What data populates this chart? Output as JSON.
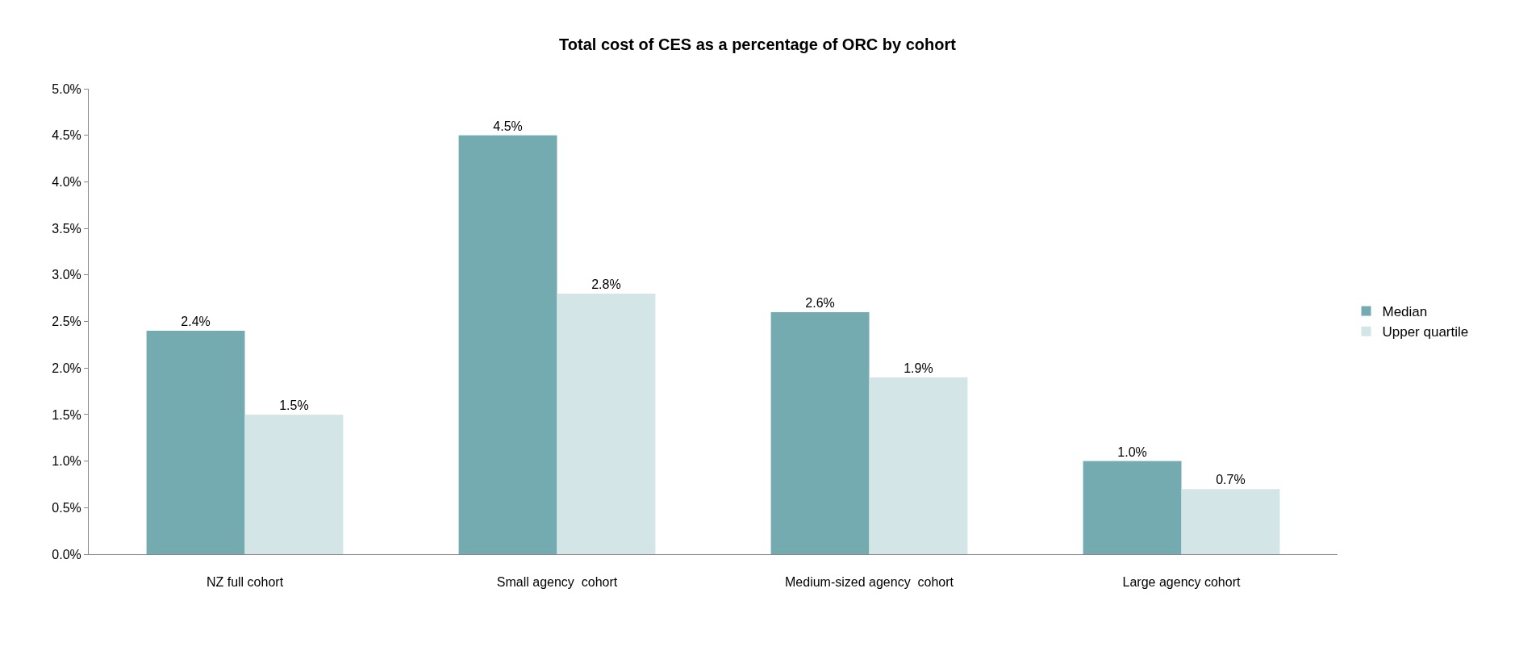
{
  "chart_data": {
    "type": "bar",
    "title": "Total cost of CES as a percentage of ORC by cohort",
    "categories": [
      "NZ full cohort",
      "Small agency  cohort",
      "Medium-sized agency  cohort",
      "Large agency cohort"
    ],
    "series": [
      {
        "name": "Median",
        "color": "#74abb0",
        "values": [
          2.4,
          4.5,
          2.6,
          1.0
        ],
        "value_labels": [
          "2.4%",
          "4.5%",
          "2.6%",
          "1.0%"
        ]
      },
      {
        "name": "Upper quartile",
        "color": "#d4e5e7",
        "values": [
          1.5,
          2.8,
          1.9,
          0.7
        ],
        "value_labels": [
          "1.5%",
          "2.8%",
          "1.9%",
          "0.7%"
        ]
      }
    ],
    "ylim": [
      0,
      5
    ],
    "yticks": [
      {
        "value": 0,
        "label": "0.0%"
      },
      {
        "value": 0.5,
        "label": "0.5%"
      },
      {
        "value": 1,
        "label": "1.0%"
      },
      {
        "value": 1.5,
        "label": "1.5%"
      },
      {
        "value": 2,
        "label": "2.0%"
      },
      {
        "value": 2.5,
        "label": "2.5%"
      },
      {
        "value": 3,
        "label": "3.0%"
      },
      {
        "value": 3.5,
        "label": "3.5%"
      },
      {
        "value": 4,
        "label": "4.0%"
      },
      {
        "value": 4.5,
        "label": "4.5%"
      },
      {
        "value": 5,
        "label": "5.0%"
      }
    ],
    "legend": "right"
  }
}
